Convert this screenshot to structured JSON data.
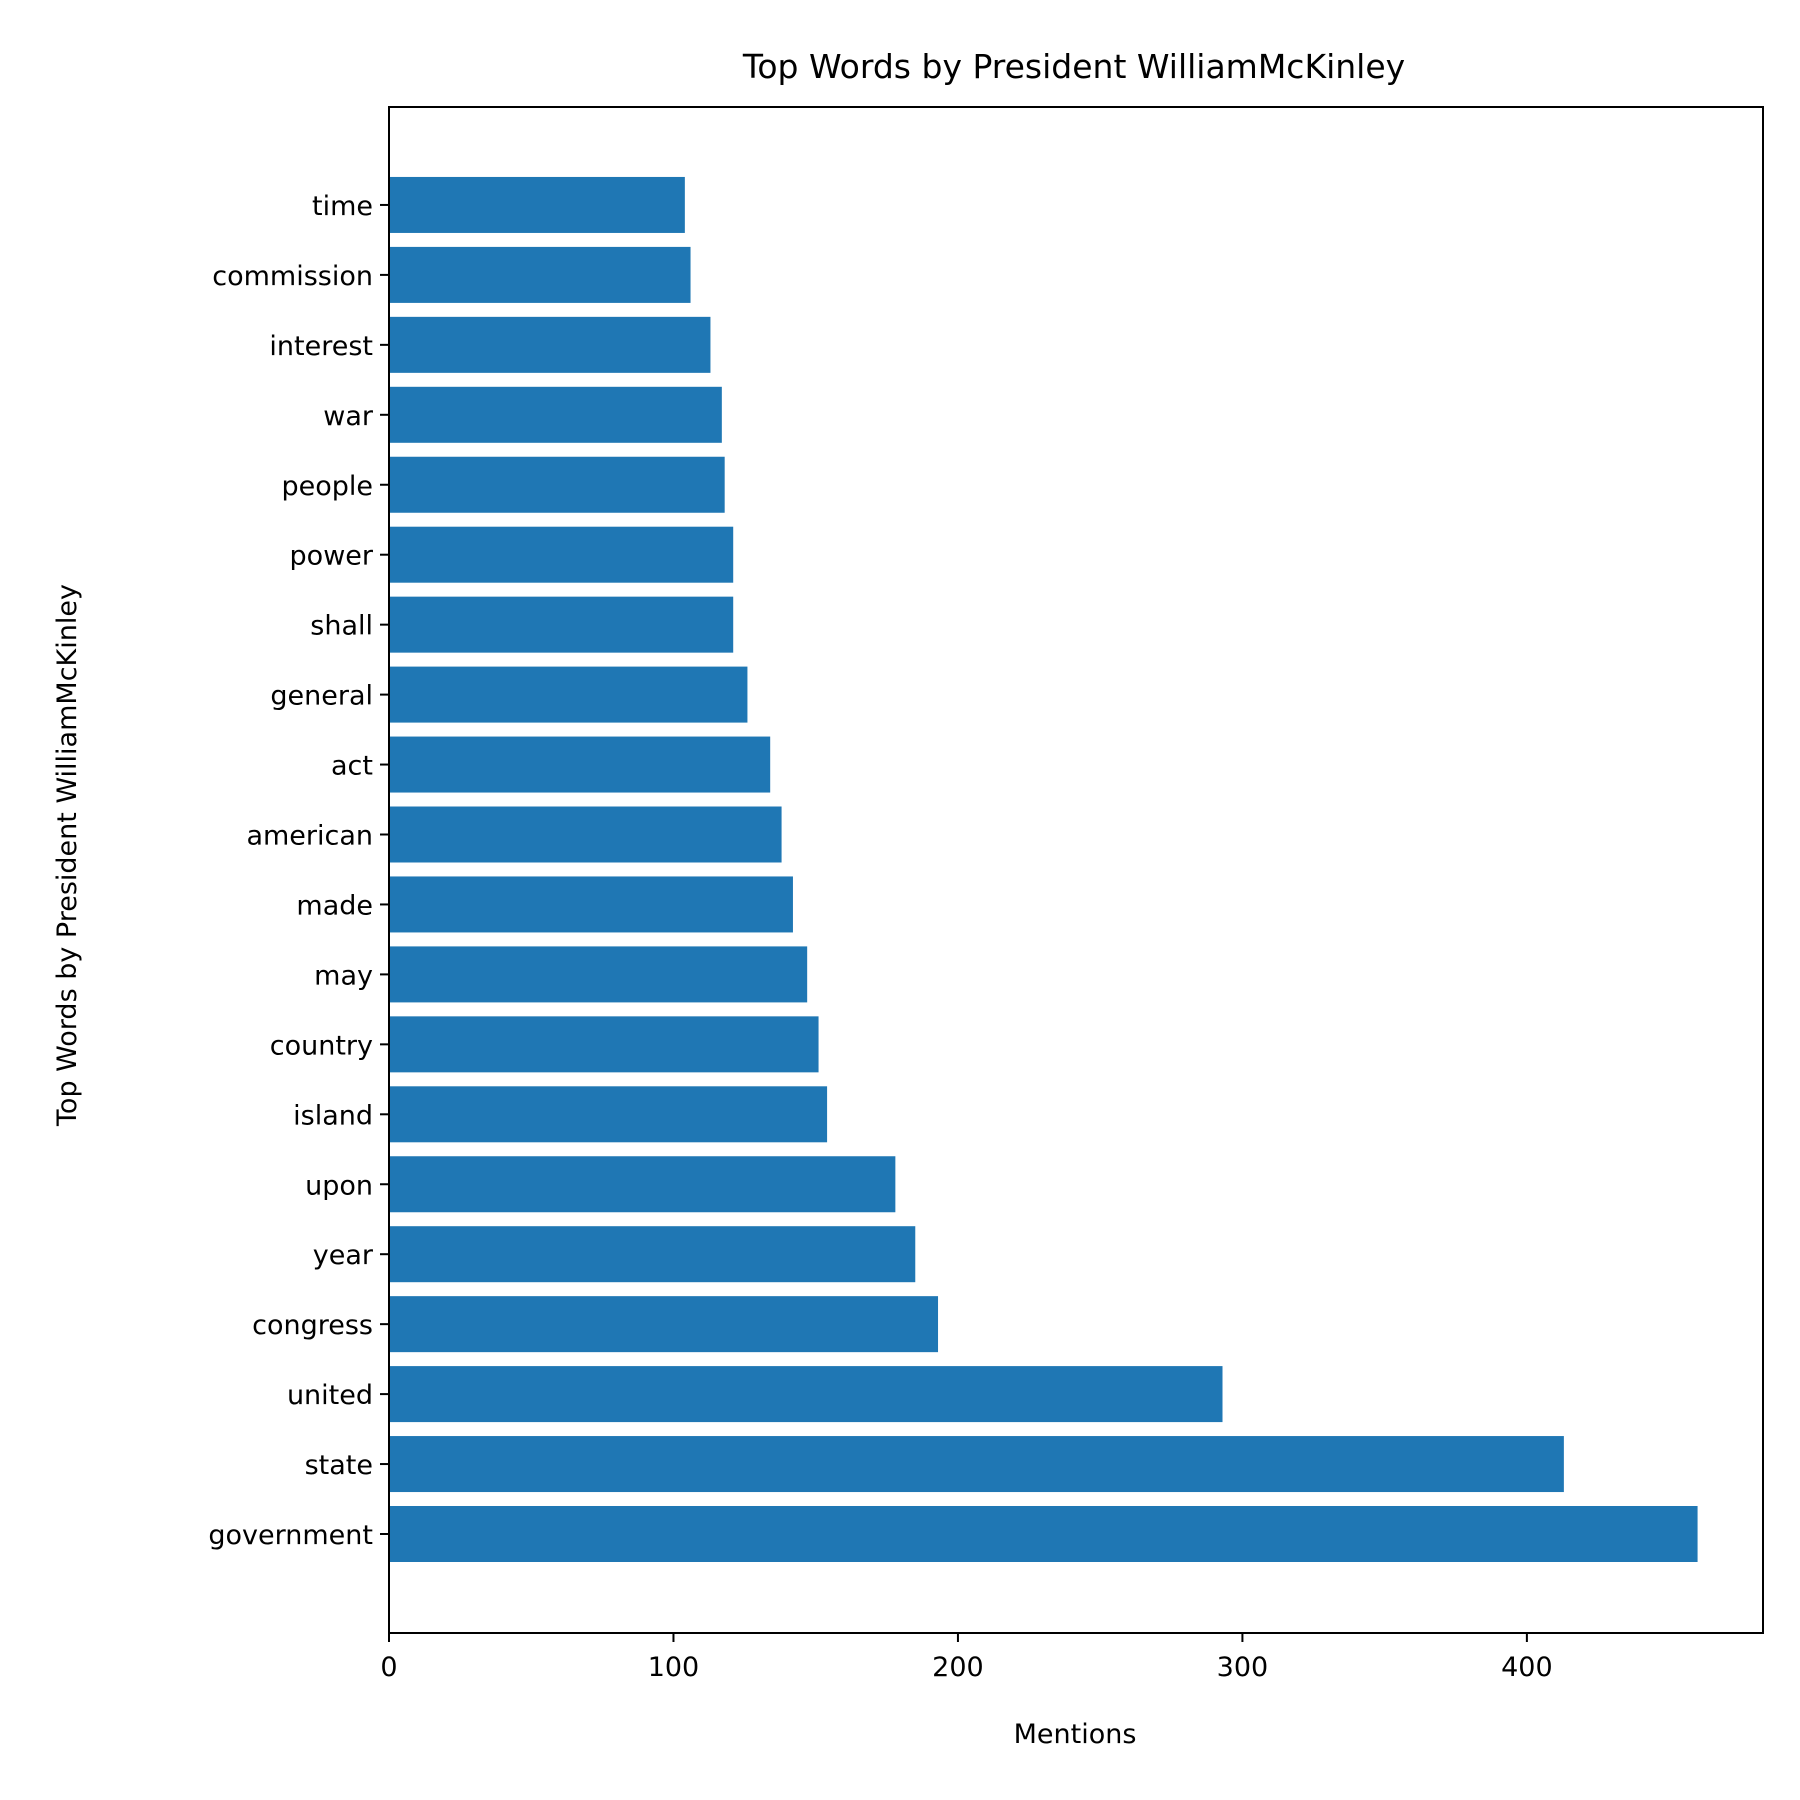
{
  "chart_data": {
    "type": "bar",
    "orientation": "horizontal",
    "title": "Top Words by President WilliamMcKinley",
    "xlabel": "Mentions",
    "ylabel": "Top Words by President WilliamMcKinley",
    "categories": [
      "government",
      "state",
      "united",
      "congress",
      "year",
      "upon",
      "island",
      "country",
      "may",
      "made",
      "american",
      "act",
      "general",
      "shall",
      "power",
      "people",
      "war",
      "interest",
      "commission",
      "time"
    ],
    "values": [
      460,
      413,
      293,
      193,
      185,
      178,
      154,
      151,
      147,
      142,
      138,
      134,
      126,
      121,
      121,
      118,
      117,
      113,
      106,
      104
    ],
    "xlim": [
      0,
      483
    ],
    "xticks": [
      0,
      100,
      200,
      300,
      400
    ],
    "xtick_labels": [
      "0",
      "100",
      "200",
      "300",
      "400"
    ],
    "grid": false,
    "bar_color": "#1f77b4"
  }
}
